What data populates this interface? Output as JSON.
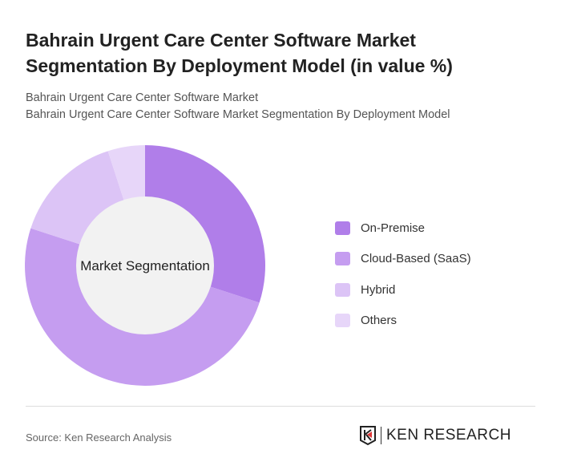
{
  "title": "Bahrain Urgent Care Center Software Market Segmentation By Deployment Model (in value %)",
  "subtitle1": "Bahrain Urgent Care Center Software Market",
  "subtitle2": "Bahrain Urgent Care Center Software Market Segmentation By Deployment Model",
  "source": "Source: Ken Research Analysis",
  "logo_text": "KEN RESEARCH",
  "chart_data": {
    "type": "pie",
    "variant": "donut",
    "center_label": "Market Segmentation",
    "categories": [
      "On-Premise",
      "Cloud-Based (SaaS)",
      "Hybrid",
      "Others"
    ],
    "values": [
      30,
      50,
      15,
      5
    ],
    "colors": [
      "#b07ee9",
      "#c59df0",
      "#dcc4f6",
      "#e7d6f9"
    ],
    "legend_position": "right"
  }
}
